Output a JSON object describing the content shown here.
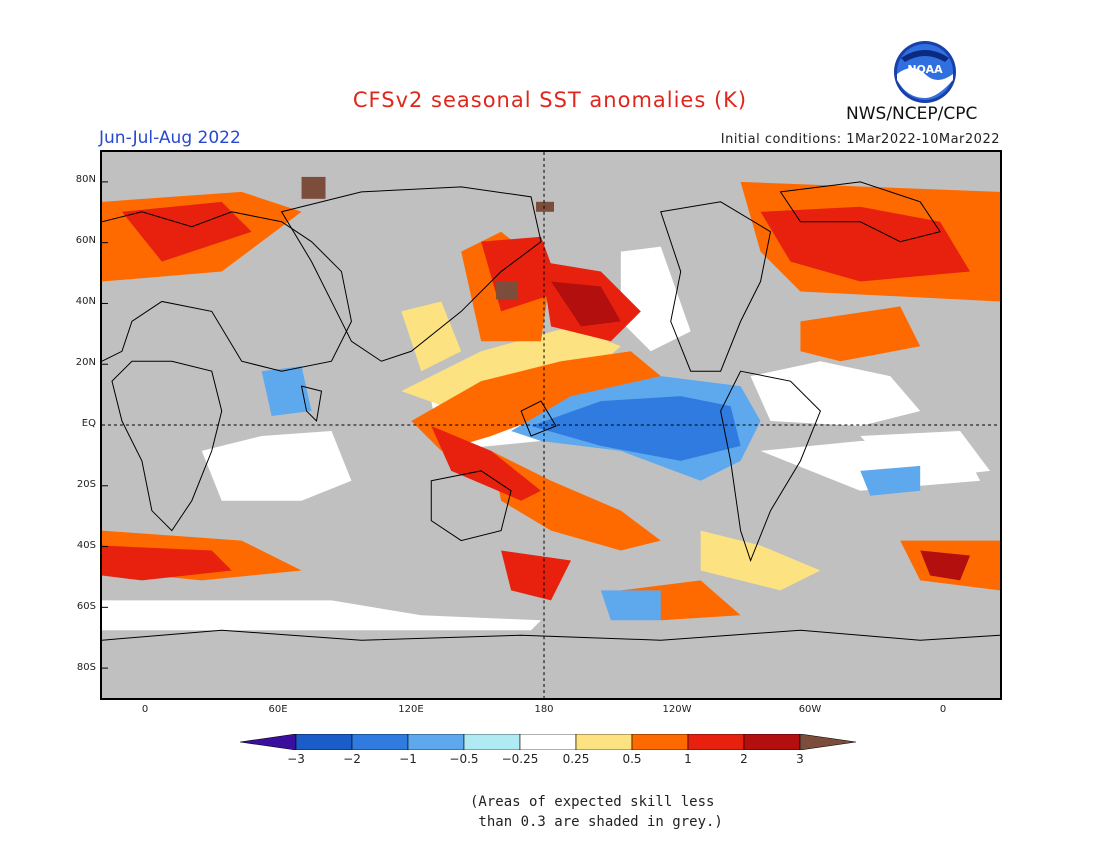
{
  "header": {
    "title": "CFSv2 seasonal SST anomalies (K)",
    "period": "Jun-Jul-Aug 2022",
    "initial_conditions": "Initial conditions: 1Mar2022-10Mar2022",
    "agency": "NWS/NCEP/CPC",
    "logo_text": "NOAA"
  },
  "axes": {
    "lat_labels": [
      "80N",
      "60N",
      "40N",
      "20N",
      "EQ",
      "20S",
      "40S",
      "60S",
      "80S"
    ],
    "lon_labels": [
      "0",
      "60E",
      "120E",
      "180",
      "120W",
      "60W",
      "0"
    ]
  },
  "legend": {
    "levels": [
      "-3",
      "-2",
      "-1",
      "-0.5",
      "-0.25",
      "0.25",
      "0.5",
      "1",
      "2",
      "3"
    ],
    "colors": [
      "#3b0f9e",
      "#1a5cc8",
      "#2f7be0",
      "#5ea8ee",
      "#b0eaf2",
      "#ffffff",
      "#fce280",
      "#ff6a00",
      "#e8210f",
      "#b30f0f",
      "#7b4d3a"
    ],
    "grey": "#c0c0c0"
  },
  "note": "(Areas of expected skill less\n than 0.3 are shaded in grey.)"
}
